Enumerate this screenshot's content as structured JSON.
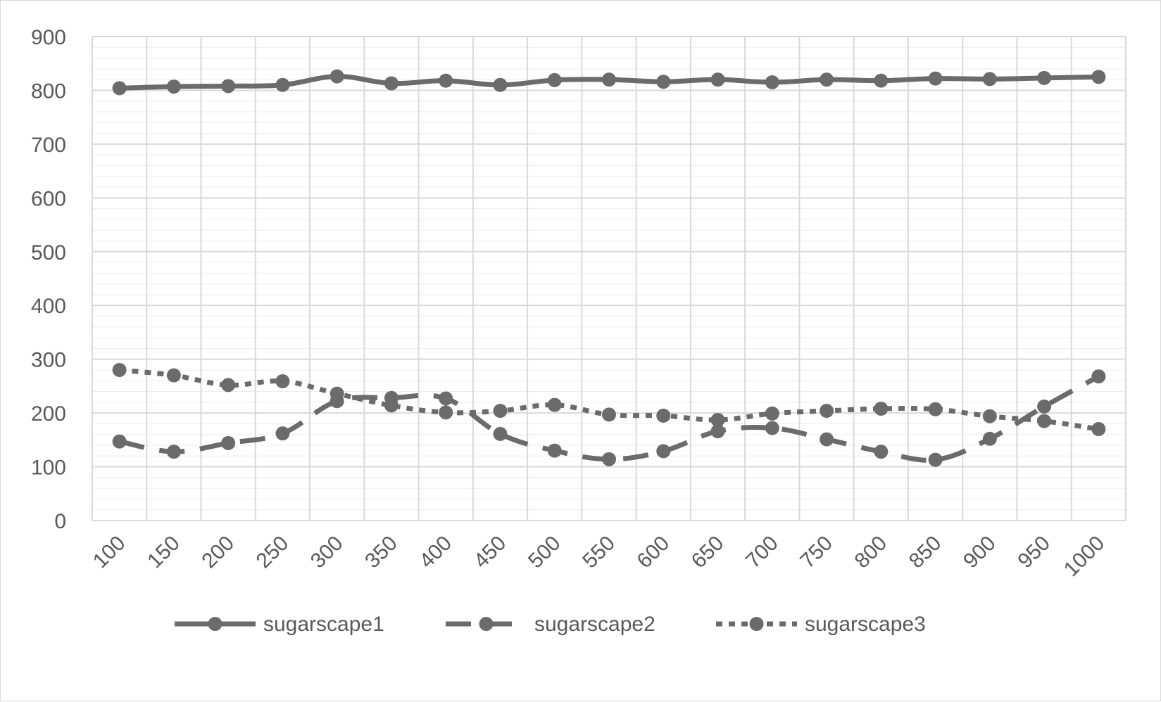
{
  "chart_data": {
    "type": "line",
    "title": "",
    "xlabel": "",
    "ylabel": "",
    "ylim": [
      0,
      900
    ],
    "yticks": [
      0,
      100,
      200,
      300,
      400,
      500,
      600,
      700,
      800,
      900
    ],
    "y_minor_step": 20,
    "grid": true,
    "legend_position": "bottom",
    "categories": [
      "100",
      "150",
      "200",
      "250",
      "300",
      "350",
      "400",
      "450",
      "500",
      "550",
      "600",
      "650",
      "700",
      "750",
      "800",
      "850",
      "900",
      "950",
      "1000"
    ],
    "series": [
      {
        "name": "sugarscape1",
        "dash": "solid",
        "color": "#6b6b6b",
        "values": [
          804,
          807,
          808,
          810,
          826,
          813,
          818,
          810,
          819,
          820,
          816,
          820,
          815,
          820,
          818,
          822,
          821,
          823,
          825
        ]
      },
      {
        "name": "sugarscape2",
        "dash": "dashed",
        "color": "#6b6b6b",
        "values": [
          147,
          128,
          144,
          162,
          222,
          228,
          227,
          161,
          130,
          114,
          129,
          166,
          172,
          151,
          128,
          113,
          152,
          212,
          268
        ]
      },
      {
        "name": "sugarscape3",
        "dash": "dotted",
        "color": "#6b6b6b",
        "values": [
          280,
          270,
          252,
          259,
          236,
          214,
          201,
          204,
          215,
          197,
          195,
          187,
          199,
          204,
          208,
          207,
          194,
          185,
          170
        ]
      }
    ]
  }
}
